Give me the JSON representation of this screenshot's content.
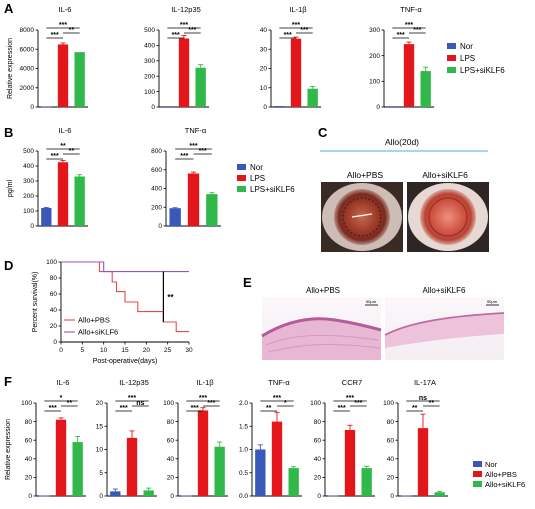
{
  "panel_letters": {
    "A": "A",
    "B": "B",
    "C": "C",
    "D": "D",
    "E": "E",
    "F": "F"
  },
  "colors": {
    "nor": "#3a58b8",
    "lps": "#e3171b",
    "lps_siklf6": "#31b84a",
    "sig_line": "#000000",
    "photo_line": "#56a8e0",
    "survival_pbs": "#e84a4a",
    "survival_siklf6": "#9b4fc6"
  },
  "chart_data": [
    {
      "id": "A-IL6",
      "type": "bar",
      "title": "IL-6",
      "ylabel": "Relative expression",
      "ylim": [
        0,
        8000
      ],
      "yticks": [
        "0",
        "2000",
        "4000",
        "6000",
        "8000"
      ],
      "categories": [
        "Nor",
        "LPS",
        "LPS+siKLF6"
      ],
      "values": [
        60,
        6500,
        5700
      ],
      "errors": [
        0,
        150,
        0
      ],
      "sig": [
        "***",
        "***",
        "**"
      ]
    },
    {
      "id": "A-IL12p35",
      "type": "bar",
      "title": "IL-12p35",
      "ylabel": "",
      "ylim": [
        0,
        500
      ],
      "yticks": [
        "0",
        "100",
        "200",
        "300",
        "400",
        "500"
      ],
      "categories": [
        "Nor",
        "LPS",
        "LPS+siKLF6"
      ],
      "values": [
        5,
        445,
        255
      ],
      "errors": [
        0,
        20,
        20
      ],
      "sig": [
        "***",
        "***",
        "***"
      ]
    },
    {
      "id": "A-IL1b",
      "type": "bar",
      "title": "IL-1β",
      "ylabel": "",
      "ylim": [
        0,
        40
      ],
      "yticks": [
        "0",
        "10",
        "20",
        "30",
        "40"
      ],
      "categories": [
        "Nor",
        "LPS",
        "LPS+siKLF6"
      ],
      "values": [
        0.5,
        35.5,
        9.5
      ],
      "errors": [
        0,
        0.8,
        1.2
      ],
      "sig": [
        "***",
        "***",
        "***"
      ]
    },
    {
      "id": "A-TNFa",
      "type": "bar",
      "title": "TNF-α",
      "ylabel": "",
      "ylim": [
        0,
        300
      ],
      "yticks": [
        "0",
        "100",
        "200",
        "300"
      ],
      "categories": [
        "Nor",
        "LPS",
        "LPS+siKLF6"
      ],
      "values": [
        3,
        245,
        140
      ],
      "errors": [
        0,
        8,
        15
      ],
      "sig": [
        "***",
        "***",
        "***"
      ]
    },
    {
      "id": "B-IL6",
      "type": "bar",
      "title": "IL-6",
      "ylabel": "pg/ml",
      "ylim": [
        0,
        500
      ],
      "yticks": [
        "0",
        "100",
        "200",
        "300",
        "400",
        "500"
      ],
      "categories": [
        "Nor",
        "LPS",
        "LPS+siKLF6"
      ],
      "values": [
        120,
        425,
        330
      ],
      "errors": [
        3,
        12,
        12
      ],
      "sig": [
        "***",
        "**",
        "**"
      ]
    },
    {
      "id": "B-TNFa",
      "type": "bar",
      "title": "TNF-α",
      "ylabel": "",
      "ylim": [
        0,
        800
      ],
      "yticks": [
        "0",
        "200",
        "400",
        "600",
        "800"
      ],
      "categories": [
        "Nor",
        "LPS",
        "LPS+siKLF6"
      ],
      "values": [
        190,
        560,
        340
      ],
      "errors": [
        5,
        15,
        15
      ],
      "sig": [
        "***",
        "***",
        "***"
      ]
    },
    {
      "id": "D-survival",
      "type": "line",
      "title": "",
      "xlabel": "Post-operative(days)",
      "ylabel": "Percent survival(%)",
      "xlim": [
        0,
        30
      ],
      "ylim": [
        0,
        100
      ],
      "xticks": [
        "0",
        "5",
        "10",
        "15",
        "20",
        "25",
        "30"
      ],
      "yticks": [
        "0",
        "20",
        "40",
        "60",
        "80",
        "100"
      ],
      "series": [
        {
          "name": "Allo+PBS",
          "x": [
            0,
            9,
            9,
            12,
            12,
            13,
            13,
            15,
            15,
            18,
            18,
            24,
            24,
            27,
            27,
            30
          ],
          "y": [
            100,
            100,
            88,
            88,
            75,
            75,
            63,
            63,
            50,
            50,
            38,
            38,
            25,
            25,
            13,
            13
          ]
        },
        {
          "name": "Allo+siKLF6",
          "x": [
            0,
            10,
            10,
            30
          ],
          "y": [
            100,
            100,
            88,
            88
          ]
        }
      ],
      "annotation": "**"
    },
    {
      "id": "F-IL6",
      "type": "bar",
      "title": "IL-6",
      "ylabel": "Relative expression",
      "ylim": [
        0,
        100
      ],
      "yticks": [
        "0",
        "20",
        "40",
        "60",
        "80",
        "100"
      ],
      "categories": [
        "Nor",
        "Allo+PBS",
        "Allo+siKLF6"
      ],
      "values": [
        0.5,
        82,
        58
      ],
      "errors": [
        0,
        2,
        6
      ],
      "sig": [
        "***",
        "*",
        "**"
      ]
    },
    {
      "id": "F-IL12p35",
      "type": "bar",
      "title": "IL-12p35",
      "ylabel": "",
      "ylim": [
        0,
        20
      ],
      "yticks": [
        "0",
        "5",
        "10",
        "15",
        "20"
      ],
      "categories": [
        "Nor",
        "Allo+PBS",
        "Allo+siKLF6"
      ],
      "values": [
        1,
        12.5,
        1.2
      ],
      "errors": [
        0.5,
        1.5,
        0.5
      ],
      "sig": [
        "***",
        "***",
        "ns"
      ]
    },
    {
      "id": "F-IL1b",
      "type": "bar",
      "title": "IL-1β",
      "ylabel": "",
      "ylim": [
        0,
        100
      ],
      "yticks": [
        "0",
        "20",
        "40",
        "60",
        "80",
        "100"
      ],
      "categories": [
        "Nor",
        "Allo+PBS",
        "Allo+siKLF6"
      ],
      "values": [
        0.5,
        92,
        53
      ],
      "errors": [
        0,
        3,
        5
      ],
      "sig": [
        "***",
        "***",
        "***"
      ]
    },
    {
      "id": "F-TNFa",
      "type": "bar",
      "title": "TNF-α",
      "ylabel": "",
      "ylim": [
        0,
        2.0
      ],
      "yticks": [
        "0.0",
        "0.5",
        "1.0",
        "1.5",
        "2.0"
      ],
      "categories": [
        "Nor",
        "Allo+PBS",
        "Allo+siKLF6"
      ],
      "values": [
        1.0,
        1.6,
        0.6
      ],
      "errors": [
        0.1,
        0.2,
        0.03
      ],
      "sig": [
        "**",
        "***",
        "*"
      ]
    },
    {
      "id": "F-CCR7",
      "type": "bar",
      "title": "CCR7",
      "ylabel": "",
      "ylim": [
        0,
        100
      ],
      "yticks": [
        "0",
        "20",
        "40",
        "60",
        "80",
        "100"
      ],
      "categories": [
        "Nor",
        "Allo+PBS",
        "Allo+siKLF6"
      ],
      "values": [
        0.5,
        71,
        30
      ],
      "errors": [
        0,
        5,
        2
      ],
      "sig": [
        "***",
        "***",
        "***"
      ]
    },
    {
      "id": "F-IL17A",
      "type": "bar",
      "title": "IL-17A",
      "ylabel": "",
      "ylim": [
        0,
        100
      ],
      "yticks": [
        "0",
        "20",
        "40",
        "60",
        "80",
        "100"
      ],
      "categories": [
        "Nor",
        "Allo+PBS",
        "Allo+siKLF6"
      ],
      "values": [
        0.5,
        73,
        4
      ],
      "errors": [
        0,
        15,
        1
      ],
      "sig": [
        "**",
        "ns",
        "**"
      ]
    }
  ],
  "legends": {
    "A": [
      "Nor",
      "LPS",
      "LPS+siKLF6"
    ],
    "B": [
      "Nor",
      "LPS",
      "LPS+siKLF6"
    ],
    "F": [
      "Nor",
      "Allo+PBS",
      "Allo+siKLF6"
    ]
  },
  "panel_C": {
    "title": "Allo(20d)",
    "left_label": "Allo+PBS",
    "right_label": "Allo+siKLF6"
  },
  "panel_E": {
    "left_label": "Allo+PBS",
    "right_label": "Allo+siKLF6",
    "scale_bar": "50μm"
  }
}
